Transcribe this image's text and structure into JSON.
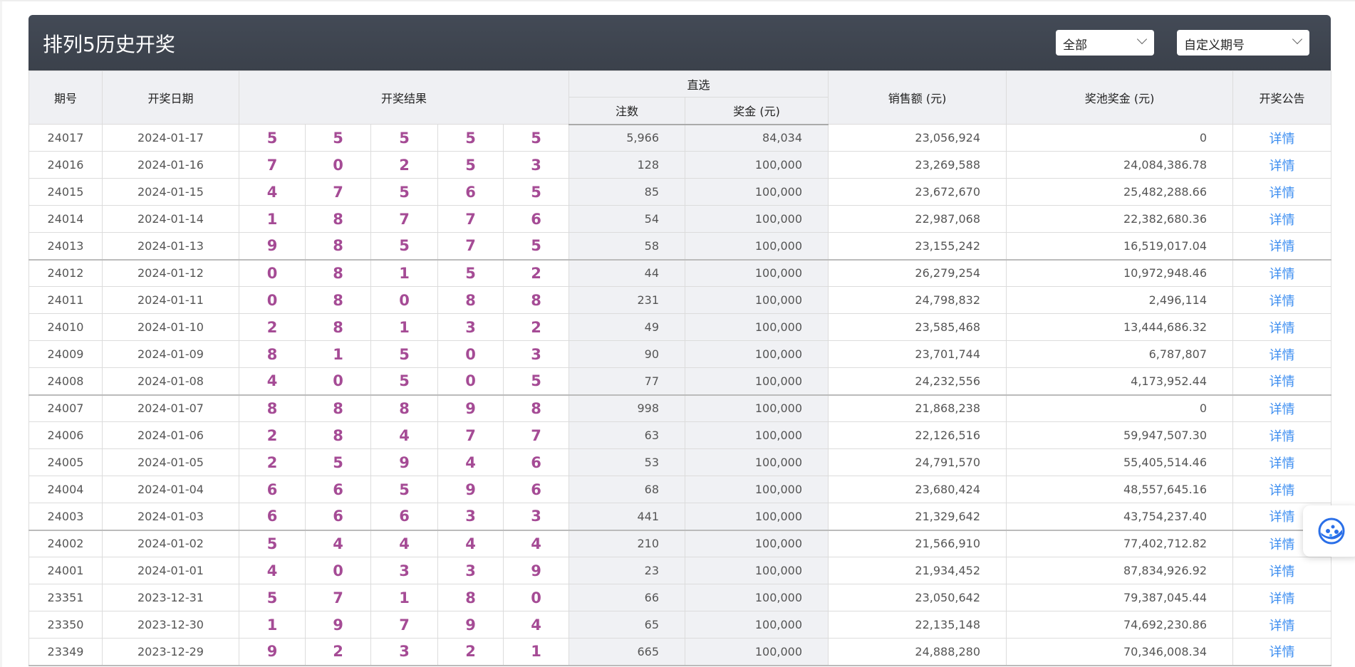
{
  "header": {
    "title": "排列5历史开奖",
    "filter_type": "全部",
    "filter_period": "自定义期号"
  },
  "columns": {
    "period": "期号",
    "date": "开奖日期",
    "result": "开奖结果",
    "direct": "直选",
    "bets": "注数",
    "prize": "奖金 (元)",
    "sales": "销售额 (元)",
    "pool": "奖池奖金 (元)",
    "notice": "开奖公告"
  },
  "link_label": "详情",
  "colors": {
    "header_bg": "#3e444f",
    "number": "#a54b95",
    "link": "#3d8ef0"
  },
  "rows": [
    {
      "period": "24017",
      "date": "2024-01-17",
      "nums": [
        "5",
        "5",
        "5",
        "5",
        "5"
      ],
      "bets": "5,966",
      "prize": "84,034",
      "sales": "23,056,924",
      "pool": "0"
    },
    {
      "period": "24016",
      "date": "2024-01-16",
      "nums": [
        "7",
        "0",
        "2",
        "5",
        "3"
      ],
      "bets": "128",
      "prize": "100,000",
      "sales": "23,269,588",
      "pool": "24,084,386.78"
    },
    {
      "period": "24015",
      "date": "2024-01-15",
      "nums": [
        "4",
        "7",
        "5",
        "6",
        "5"
      ],
      "bets": "85",
      "prize": "100,000",
      "sales": "23,672,670",
      "pool": "25,482,288.66"
    },
    {
      "period": "24014",
      "date": "2024-01-14",
      "nums": [
        "1",
        "8",
        "7",
        "7",
        "6"
      ],
      "bets": "54",
      "prize": "100,000",
      "sales": "22,987,068",
      "pool": "22,382,680.36"
    },
    {
      "period": "24013",
      "date": "2024-01-13",
      "nums": [
        "9",
        "8",
        "5",
        "7",
        "5"
      ],
      "bets": "58",
      "prize": "100,000",
      "sales": "23,155,242",
      "pool": "16,519,017.04"
    },
    {
      "period": "24012",
      "date": "2024-01-12",
      "nums": [
        "0",
        "8",
        "1",
        "5",
        "2"
      ],
      "bets": "44",
      "prize": "100,000",
      "sales": "26,279,254",
      "pool": "10,972,948.46"
    },
    {
      "period": "24011",
      "date": "2024-01-11",
      "nums": [
        "0",
        "8",
        "0",
        "8",
        "8"
      ],
      "bets": "231",
      "prize": "100,000",
      "sales": "24,798,832",
      "pool": "2,496,114"
    },
    {
      "period": "24010",
      "date": "2024-01-10",
      "nums": [
        "2",
        "8",
        "1",
        "3",
        "2"
      ],
      "bets": "49",
      "prize": "100,000",
      "sales": "23,585,468",
      "pool": "13,444,686.32"
    },
    {
      "period": "24009",
      "date": "2024-01-09",
      "nums": [
        "8",
        "1",
        "5",
        "0",
        "3"
      ],
      "bets": "90",
      "prize": "100,000",
      "sales": "23,701,744",
      "pool": "6,787,807"
    },
    {
      "period": "24008",
      "date": "2024-01-08",
      "nums": [
        "4",
        "0",
        "5",
        "0",
        "5"
      ],
      "bets": "77",
      "prize": "100,000",
      "sales": "24,232,556",
      "pool": "4,173,952.44"
    },
    {
      "period": "24007",
      "date": "2024-01-07",
      "nums": [
        "8",
        "8",
        "8",
        "9",
        "8"
      ],
      "bets": "998",
      "prize": "100,000",
      "sales": "21,868,238",
      "pool": "0"
    },
    {
      "period": "24006",
      "date": "2024-01-06",
      "nums": [
        "2",
        "8",
        "4",
        "7",
        "7"
      ],
      "bets": "63",
      "prize": "100,000",
      "sales": "22,126,516",
      "pool": "59,947,507.30"
    },
    {
      "period": "24005",
      "date": "2024-01-05",
      "nums": [
        "2",
        "5",
        "9",
        "4",
        "6"
      ],
      "bets": "53",
      "prize": "100,000",
      "sales": "24,791,570",
      "pool": "55,405,514.46"
    },
    {
      "period": "24004",
      "date": "2024-01-04",
      "nums": [
        "6",
        "6",
        "5",
        "9",
        "6"
      ],
      "bets": "68",
      "prize": "100,000",
      "sales": "23,680,424",
      "pool": "48,557,645.16"
    },
    {
      "period": "24003",
      "date": "2024-01-03",
      "nums": [
        "6",
        "6",
        "6",
        "3",
        "3"
      ],
      "bets": "441",
      "prize": "100,000",
      "sales": "21,329,642",
      "pool": "43,754,237.40"
    },
    {
      "period": "24002",
      "date": "2024-01-02",
      "nums": [
        "5",
        "4",
        "4",
        "4",
        "4"
      ],
      "bets": "210",
      "prize": "100,000",
      "sales": "21,566,910",
      "pool": "77,402,712.82"
    },
    {
      "period": "24001",
      "date": "2024-01-01",
      "nums": [
        "4",
        "0",
        "3",
        "3",
        "9"
      ],
      "bets": "23",
      "prize": "100,000",
      "sales": "21,934,452",
      "pool": "87,834,926.92"
    },
    {
      "period": "23351",
      "date": "2023-12-31",
      "nums": [
        "5",
        "7",
        "1",
        "8",
        "0"
      ],
      "bets": "66",
      "prize": "100,000",
      "sales": "23,050,642",
      "pool": "79,387,045.44"
    },
    {
      "period": "23350",
      "date": "2023-12-30",
      "nums": [
        "1",
        "9",
        "7",
        "9",
        "4"
      ],
      "bets": "65",
      "prize": "100,000",
      "sales": "22,135,148",
      "pool": "74,692,230.86"
    },
    {
      "period": "23349",
      "date": "2023-12-29",
      "nums": [
        "9",
        "2",
        "3",
        "2",
        "1"
      ],
      "bets": "665",
      "prize": "100,000",
      "sales": "24,888,280",
      "pool": "70,346,008.34"
    }
  ]
}
